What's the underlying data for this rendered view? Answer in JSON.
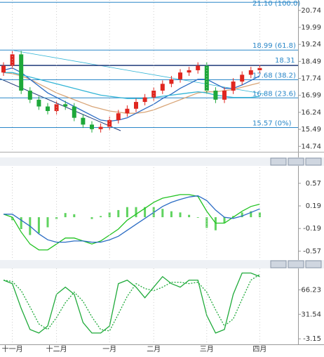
{
  "chart_data": [
    {
      "type": "candlestick",
      "up_color": "#e0261f",
      "down_color": "#1ea83a",
      "open": [
        18.0,
        18.3,
        18.8,
        17.2,
        16.8,
        16.5,
        16.3,
        16.6,
        16.5,
        16.0,
        15.7,
        15.5,
        15.6,
        15.9,
        16.2,
        16.4,
        16.7,
        16.9,
        17.2,
        17.5,
        17.7,
        18.0,
        18.1,
        18.3,
        17.2,
        16.8,
        17.2,
        17.6,
        17.9,
        18.1
      ],
      "high": [
        18.45,
        18.95,
        18.95,
        17.35,
        16.95,
        16.65,
        16.75,
        16.75,
        16.65,
        16.15,
        15.85,
        15.75,
        16.05,
        16.35,
        16.55,
        16.85,
        17.05,
        17.35,
        17.65,
        17.85,
        18.15,
        18.25,
        18.45,
        18.45,
        17.35,
        17.35,
        17.75,
        18.05,
        18.25,
        18.35
      ],
      "low": [
        17.85,
        18.15,
        17.05,
        16.65,
        16.35,
        16.15,
        16.15,
        16.35,
        15.85,
        15.55,
        15.35,
        15.35,
        15.45,
        15.75,
        16.05,
        16.25,
        16.55,
        16.75,
        17.05,
        17.35,
        17.55,
        17.85,
        17.95,
        17.05,
        16.65,
        16.65,
        17.05,
        17.45,
        17.75,
        17.95
      ],
      "close": [
        18.3,
        18.8,
        17.2,
        16.8,
        16.5,
        16.3,
        16.6,
        16.5,
        16.0,
        15.7,
        15.5,
        15.6,
        15.9,
        16.2,
        16.4,
        16.7,
        16.9,
        17.2,
        17.5,
        17.7,
        18.0,
        18.1,
        18.3,
        17.2,
        16.8,
        17.2,
        17.6,
        17.9,
        18.1,
        18.2
      ],
      "lines": [
        {
          "color": "#d9a577",
          "values": [
            18.0,
            17.95,
            17.85,
            17.7,
            17.5,
            17.3,
            17.1,
            16.95,
            16.8,
            16.65,
            16.5,
            16.4,
            16.3,
            16.25,
            16.2,
            16.2,
            16.25,
            16.35,
            16.5,
            16.65,
            16.8,
            16.95,
            17.1,
            17.15,
            17.15,
            17.2,
            17.25,
            17.35,
            17.45,
            17.55
          ]
        },
        {
          "color": "#2b6cc4",
          "values": [
            18.1,
            18.2,
            18.0,
            17.7,
            17.4,
            17.1,
            16.9,
            16.7,
            16.5,
            16.3,
            16.1,
            15.9,
            15.85,
            15.9,
            16.0,
            16.2,
            16.4,
            16.6,
            16.85,
            17.05,
            17.3,
            17.5,
            17.7,
            17.7,
            17.5,
            17.3,
            17.3,
            17.45,
            17.65,
            17.85
          ]
        },
        {
          "color": "#33b5d6",
          "values": [
            18.0,
            18.0,
            17.9,
            17.8,
            17.7,
            17.6,
            17.5,
            17.4,
            17.3,
            17.2,
            17.1,
            17.0,
            16.95,
            16.9,
            16.85,
            16.85,
            16.85,
            16.9,
            16.95,
            17.0,
            17.05,
            17.1,
            17.15,
            17.1,
            17.0,
            16.95,
            16.9,
            16.9,
            16.9,
            16.95
          ]
        }
      ],
      "fib_color": "#2a87c8",
      "fib_levels": [
        {
          "value": 21.1,
          "label": "21.10 (100.0)"
        },
        {
          "value": 18.99,
          "label": "18.99 (61.8)"
        },
        {
          "value": 17.68,
          "label": "17.68 (38.2)"
        },
        {
          "value": 16.88,
          "label": "16.88 (23.6)"
        },
        {
          "value": 15.57,
          "label": "15.57 (0%)"
        }
      ],
      "price_line": 18.31,
      "price_line_color": "#1f3a7a",
      "ylim": [
        14.5,
        21.2
      ],
      "yticks": [
        20.74,
        19.99,
        19.24,
        18.49,
        17.74,
        16.99,
        16.24,
        15.49,
        14.74
      ]
    },
    {
      "type": "line",
      "series": [
        {
          "type": "bar",
          "color": "#5fd35f",
          "values": [
            0,
            -0.05,
            -0.2,
            -0.3,
            -0.27,
            -0.17,
            -0.03,
            0.07,
            0.05,
            0,
            -0.03,
            0.02,
            0.08,
            0.12,
            0.17,
            0.17,
            0.17,
            0.17,
            0.14,
            0.1,
            0.08,
            0.04,
            -0.01,
            -0.18,
            -0.22,
            -0.1,
            0.02,
            0.08,
            0.1,
            0.08
          ]
        },
        {
          "color": "#22c322",
          "values": [
            0.05,
            0.0,
            -0.25,
            -0.45,
            -0.55,
            -0.55,
            -0.45,
            -0.35,
            -0.35,
            -0.4,
            -0.45,
            -0.4,
            -0.3,
            -0.2,
            -0.05,
            0.05,
            0.15,
            0.25,
            0.32,
            0.35,
            0.38,
            0.38,
            0.35,
            0.1,
            -0.1,
            -0.1,
            0.0,
            0.1,
            0.18,
            0.22
          ]
        },
        {
          "color": "#2b6cc4",
          "values": [
            0.05,
            0.05,
            -0.05,
            -0.15,
            -0.28,
            -0.38,
            -0.42,
            -0.42,
            -0.4,
            -0.4,
            -0.42,
            -0.42,
            -0.38,
            -0.32,
            -0.22,
            -0.12,
            -0.02,
            0.08,
            0.18,
            0.25,
            0.3,
            0.34,
            0.36,
            0.28,
            0.12,
            0.0,
            -0.02,
            0.02,
            0.08,
            0.14
          ]
        }
      ],
      "ylim": [
        -0.72,
        0.84
      ],
      "yticks": [
        0.57,
        0.19,
        -0.19,
        -0.57
      ]
    },
    {
      "type": "line",
      "categories": [
        null,
        "十一月",
        null,
        null,
        null,
        null,
        "十二月",
        null,
        null,
        null,
        null,
        null,
        "一月",
        null,
        null,
        null,
        null,
        "二月",
        null,
        null,
        null,
        null,
        null,
        "三月",
        null,
        null,
        null,
        null,
        null,
        "四月"
      ],
      "xgrid": true,
      "series": [
        {
          "color": "#1faa3a",
          "values": [
            80,
            75,
            40,
            10,
            5,
            15,
            60,
            70,
            60,
            20,
            5,
            5,
            15,
            75,
            80,
            70,
            55,
            70,
            85,
            75,
            70,
            80,
            80,
            30,
            5,
            10,
            60,
            90,
            90,
            85
          ]
        },
        {
          "color": "#1faa3a",
          "style": "dotted",
          "values": [
            80,
            78,
            65,
            42,
            18,
            10,
            27,
            48,
            63,
            50,
            28,
            10,
            8,
            32,
            57,
            75,
            68,
            65,
            70,
            77,
            77,
            75,
            77,
            63,
            38,
            15,
            25,
            53,
            80,
            88
          ]
        }
      ],
      "ylim": [
        -11,
        96.5
      ],
      "yticks": [
        66.23,
        31.54,
        -3.15
      ]
    }
  ]
}
